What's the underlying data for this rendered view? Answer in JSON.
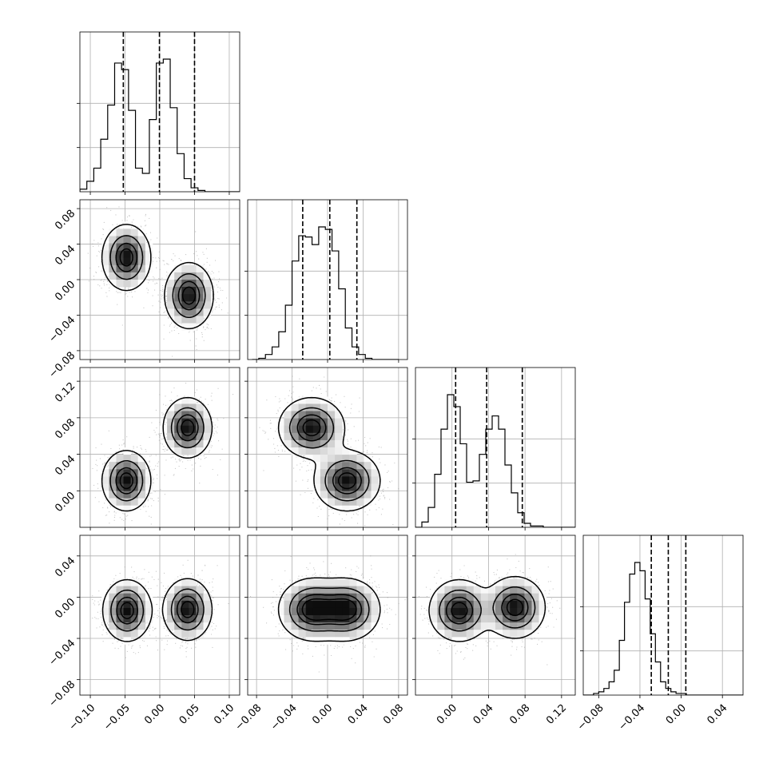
{
  "chart_data": {
    "type": "corner",
    "grid": true,
    "n_params": 4,
    "quantiles": [
      0.16,
      0.5,
      0.84
    ],
    "params": [
      {
        "range": [
          -0.115,
          0.115
        ],
        "ticks": [
          -0.1,
          -0.05,
          0.0,
          0.05,
          0.1
        ],
        "tick_labels": [
          "−0.10",
          "−0.05",
          "0.00",
          "0.05",
          "0.10"
        ],
        "quantile_values": [
          -0.0525,
          -0.0005,
          0.05
        ],
        "hist": {
          "bin_edges_start": -0.115,
          "bin_width": 0.01,
          "counts": [
            2,
            8,
            18,
            40,
            66,
            98,
            93,
            62,
            18,
            14,
            55,
            98,
            101,
            64,
            29,
            10,
            3,
            1,
            0,
            0,
            0,
            0,
            0
          ]
        }
      },
      {
        "range": [
          -0.09,
          0.09
        ],
        "ticks": [
          -0.08,
          -0.04,
          0.0,
          0.04,
          0.08
        ],
        "tick_labels": [
          "−0.08",
          "−0.04",
          "0.00",
          "0.04",
          "0.08"
        ],
        "quantile_values": [
          -0.028,
          0.0025,
          0.033
        ],
        "hist": {
          "bin_edges_start": -0.085,
          "bin_width": 0.0075,
          "counts": [
            0,
            1,
            4,
            10,
            22,
            43,
            78,
            98,
            97,
            91,
            105,
            103,
            86,
            56,
            25,
            10,
            4,
            1,
            0,
            0,
            0,
            0
          ]
        }
      },
      {
        "range": [
          -0.04,
          0.135
        ],
        "ticks": [
          0.0,
          0.04,
          0.08,
          0.12
        ],
        "tick_labels": [
          "0.00",
          "0.04",
          "0.08",
          "0.12"
        ],
        "quantile_values": [
          0.004,
          0.038,
          0.077
        ],
        "hist": {
          "bin_edges_start": -0.04,
          "bin_width": 0.007,
          "counts": [
            0,
            4,
            15,
            40,
            74,
            100,
            91,
            63,
            34,
            35,
            55,
            74,
            84,
            74,
            47,
            26,
            11,
            3,
            1,
            1,
            0,
            0,
            0,
            0,
            0
          ]
        }
      },
      {
        "range": [
          -0.095,
          0.06
        ],
        "ticks": [
          -0.08,
          -0.04,
          0.0,
          0.04
        ],
        "tick_labels": [
          "−0.08",
          "−0.04",
          "0.00",
          "0.04"
        ],
        "quantile_values": [
          -0.029,
          -0.0125,
          0.0045
        ],
        "hist": {
          "bin_edges_start": -0.095,
          "bin_width": 0.005,
          "counts": [
            0,
            0,
            1,
            2,
            4,
            8,
            15,
            33,
            56,
            73,
            80,
            75,
            58,
            37,
            20,
            8,
            4,
            2,
            1,
            1,
            0,
            0,
            0,
            0,
            0,
            0,
            0,
            0,
            0,
            0,
            0
          ]
        }
      }
    ],
    "mixture": {
      "x_modes": [
        -0.05,
        0.04
      ],
      "sigma": [
        0.017,
        0.018,
        0.016,
        0.0145
      ],
      "cross_panels": [
        {
          "row": 1,
          "col": 0,
          "modes": [
            [
              -0.048,
              0.025
            ],
            [
              0.042,
              -0.018
            ]
          ],
          "weights": [
            0.5,
            0.5
          ]
        },
        {
          "row": 2,
          "col": 0,
          "modes": [
            [
              -0.048,
              0.011
            ],
            [
              0.04,
              0.069
            ]
          ],
          "weights": [
            0.5,
            0.5
          ]
        },
        {
          "row": 2,
          "col": 1,
          "modes": [
            [
              -0.018,
              0.069
            ],
            [
              0.022,
              0.011
            ]
          ],
          "weights": [
            0.5,
            0.5
          ]
        },
        {
          "row": 3,
          "col": 0,
          "modes": [
            [
              -0.047,
              -0.013
            ],
            [
              0.04,
              -0.012
            ]
          ],
          "weights": [
            0.5,
            0.5
          ]
        },
        {
          "row": 3,
          "col": 1,
          "modes": [
            [
              -0.018,
              -0.012
            ],
            [
              0.022,
              -0.012
            ]
          ],
          "weights": [
            0.5,
            0.5
          ]
        },
        {
          "row": 3,
          "col": 2,
          "modes": [
            [
              0.008,
              -0.013
            ],
            [
              0.069,
              -0.01
            ]
          ],
          "weights": [
            0.5,
            0.5
          ]
        }
      ],
      "contour_levels": [
        0.118,
        0.393,
        0.675,
        0.865
      ]
    }
  }
}
